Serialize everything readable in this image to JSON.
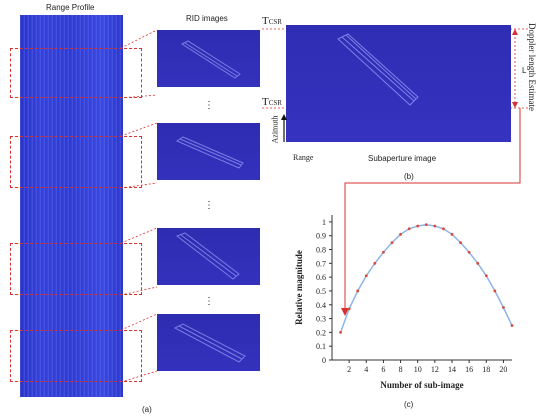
{
  "labels": {
    "range_profile": "Range Profile",
    "rid_images": "RID images",
    "panel_a": "(a)",
    "panel_b": "(b)",
    "panel_c": "(c)",
    "subaperture_image": "Subaperture image",
    "range": "Range",
    "azimuth": "Azimuth",
    "tcsr_top": "T",
    "tcsr_top_sub": "CSR",
    "tcsr_bottom": "T",
    "tcsr_bottom_sub": "CSR",
    "length_L": "L",
    "doppler_length": "Doppler length Estimate",
    "ellipsis": "⋮"
  },
  "colors": {
    "image_blue": "#3331bb",
    "curve_blue": "#8fb4e6",
    "marker_red": "#d94a3a",
    "dash_red": "#d63030"
  },
  "chart_data": {
    "type": "line",
    "xlabel": "Number of sub-image",
    "ylabel": "Relative magnitude",
    "xlim": [
      0,
      21
    ],
    "ylim": [
      0,
      1.05
    ],
    "xticks": [
      2,
      4,
      6,
      8,
      10,
      12,
      14,
      16,
      18,
      20
    ],
    "yticks": [
      0,
      0.1,
      0.2,
      0.3,
      0.4,
      0.5,
      0.6,
      0.7,
      0.8,
      0.9,
      1
    ],
    "x": [
      1,
      2,
      3,
      4,
      5,
      6,
      7,
      8,
      9,
      10,
      11,
      12,
      13,
      14,
      15,
      16,
      17,
      18,
      19,
      20,
      21
    ],
    "y": [
      0.2,
      0.37,
      0.5,
      0.61,
      0.7,
      0.78,
      0.85,
      0.91,
      0.95,
      0.97,
      0.98,
      0.97,
      0.95,
      0.91,
      0.85,
      0.78,
      0.7,
      0.61,
      0.5,
      0.38,
      0.25
    ],
    "grid": false
  }
}
